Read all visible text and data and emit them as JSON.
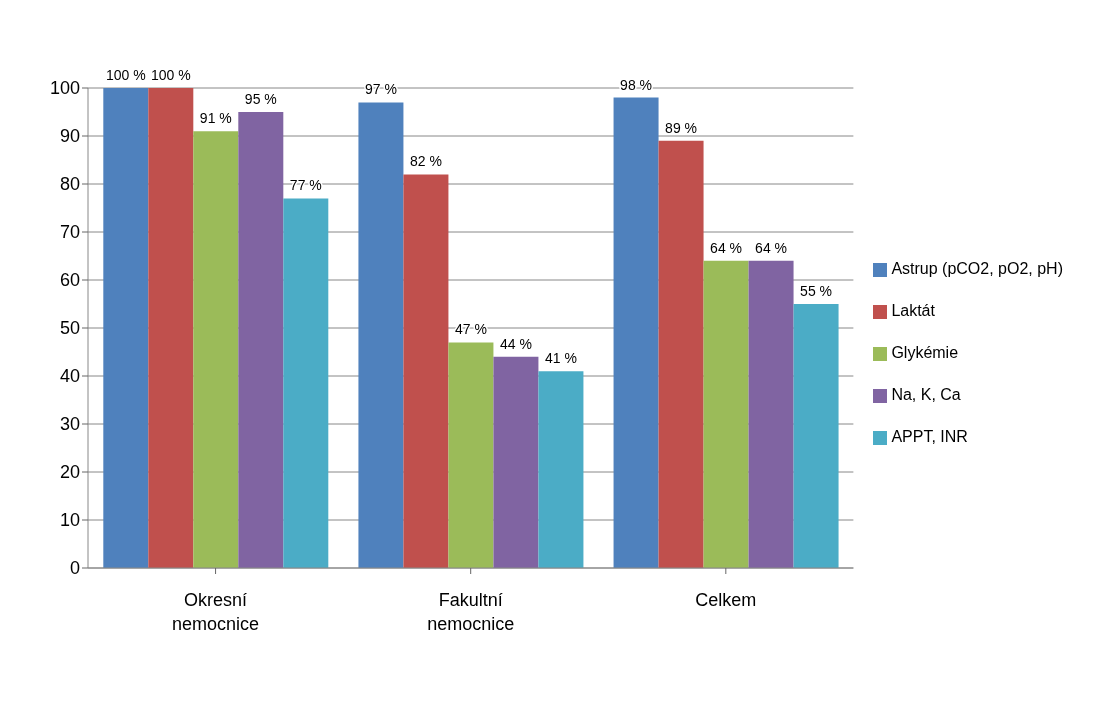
{
  "chart_data": {
    "type": "bar",
    "categories": [
      "Okresní nemocnice",
      "Fakultní nemocnice",
      "Celkem"
    ],
    "series": [
      {
        "name": "Astrup (pCO2, pO2, pH)",
        "color": "#4f81bd",
        "values": [
          100,
          97,
          98
        ],
        "value_labels": [
          "100 %",
          "97 %",
          "98 %"
        ]
      },
      {
        "name": "Laktát",
        "color": "#c0504d",
        "values": [
          100,
          82,
          89
        ],
        "value_labels": [
          "100 %",
          "82 %",
          "89 %"
        ]
      },
      {
        "name": "Glykémie",
        "color": "#9bbb59",
        "values": [
          91,
          47,
          64
        ],
        "value_labels": [
          "91 %",
          "47 %",
          "64 %"
        ]
      },
      {
        "name": "Na, K, Ca",
        "color": "#8064a2",
        "values": [
          95,
          44,
          64
        ],
        "value_labels": [
          "95 %",
          "44 %",
          "64 %"
        ]
      },
      {
        "name": "APPT, INR",
        "color": "#4bacc6",
        "values": [
          77,
          41,
          55
        ],
        "value_labels": [
          "77 %",
          "41 %",
          "55 %"
        ]
      }
    ],
    "ylim": [
      0,
      100
    ],
    "yticks": [
      0,
      10,
      20,
      30,
      40,
      50,
      60,
      70,
      80,
      90,
      100
    ],
    "grid": "y",
    "legend": "right"
  }
}
